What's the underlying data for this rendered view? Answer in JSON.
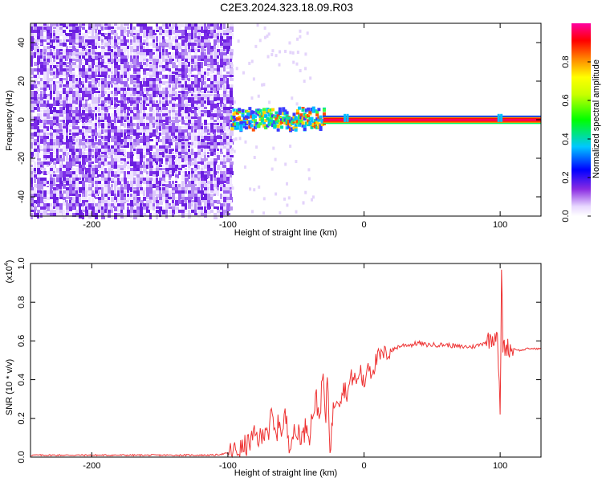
{
  "page": {
    "title": "C2E3.2024.323.18.09.R03"
  },
  "chart_data": [
    {
      "type": "heatmap",
      "title": "C2E3.2024.323.18.09.R03",
      "xlabel": "Height of straight line (km)",
      "ylabel": "Frequency (Hz)",
      "xlim": [
        -245,
        130
      ],
      "ylim": [
        -50,
        50
      ],
      "x_ticks": [
        -200,
        -100,
        0,
        100
      ],
      "y_ticks": [
        -40,
        -20,
        0,
        20,
        40
      ],
      "x_tick_labels": [
        "-200",
        "-100",
        "0",
        "100"
      ],
      "y_tick_labels": [
        "-40",
        "-20",
        "0",
        "20",
        "40"
      ],
      "colorbar": {
        "label": "Normalized spectral amplitude",
        "range": [
          0,
          1
        ],
        "ticks": [
          0.0,
          0.2,
          0.4,
          0.6,
          0.8
        ],
        "tick_labels": [
          "0.0",
          "0.2",
          "0.4",
          "0.6",
          "0.8"
        ],
        "colormap": [
          "#ffffff",
          "#d8c8f8",
          "#8a2be2",
          "#0000ff",
          "#00c8ff",
          "#00ff00",
          "#ffff00",
          "#ff8000",
          "#ff0000",
          "#ff00ff"
        ]
      },
      "regions": [
        {
          "x_range": [
            -245,
            -98
          ],
          "y_range": [
            -50,
            50
          ],
          "amplitude_range": [
            0.0,
            0.25
          ],
          "description_color": "#7b2be8"
        },
        {
          "x_range": [
            -98,
            -30
          ],
          "y_center": 1,
          "half_width_hz": 5,
          "amplitude_range": [
            0.2,
            0.7
          ]
        },
        {
          "x_range": [
            -30,
            130
          ],
          "y_center": 0,
          "half_width_hz": 1.5,
          "amplitude_range": [
            0.7,
            1.0
          ]
        }
      ]
    },
    {
      "type": "line",
      "xlabel": "Height of straight line (km)",
      "ylabel": "SNR (10 * v/v)",
      "y_multiplier_label": "(x10",
      "y_multiplier_exponent": "4",
      "xlim": [
        -245,
        130
      ],
      "ylim": [
        0.0,
        1.0
      ],
      "x_ticks": [
        -200,
        -100,
        0,
        100
      ],
      "y_ticks": [
        0.0,
        0.2,
        0.4,
        0.6,
        0.8,
        1.0
      ],
      "x_tick_labels": [
        "-200",
        "-100",
        "0",
        "100"
      ],
      "y_tick_labels": [
        "0.0",
        "0.2",
        "0.4",
        "0.6",
        "0.8",
        "1.0"
      ],
      "color": "#ee3333",
      "series": [
        {
          "x": [
            -245,
            -200,
            -150,
            -110,
            -100,
            -95,
            -90,
            -85,
            -80,
            -75,
            -72,
            -70,
            -68,
            -65,
            -62,
            -60,
            -58,
            -55,
            -52,
            -50,
            -48,
            -45,
            -42,
            -40,
            -38,
            -35,
            -33,
            -30,
            -28,
            -27,
            -25,
            -22,
            -20,
            -18,
            -15,
            -12,
            -10,
            -8,
            -5,
            -3,
            0,
            3,
            5,
            8,
            10,
            15,
            20,
            25,
            30,
            35,
            40,
            45,
            50,
            60,
            70,
            80,
            85,
            90,
            95,
            98,
            100,
            101,
            102,
            103,
            104,
            105,
            108,
            110,
            115,
            120,
            125,
            130
          ],
          "y": [
            0.01,
            0.01,
            0.01,
            0.01,
            0.02,
            0.03,
            0.04,
            0.07,
            0.11,
            0.09,
            0.18,
            0.12,
            0.22,
            0.1,
            0.2,
            0.12,
            0.22,
            0.08,
            0.12,
            0.1,
            0.14,
            0.1,
            0.18,
            0.12,
            0.22,
            0.3,
            0.2,
            0.42,
            0.15,
            0.45,
            0.05,
            0.28,
            0.32,
            0.3,
            0.36,
            0.33,
            0.4,
            0.42,
            0.38,
            0.46,
            0.36,
            0.5,
            0.44,
            0.48,
            0.51,
            0.53,
            0.55,
            0.57,
            0.58,
            0.58,
            0.59,
            0.58,
            0.58,
            0.58,
            0.57,
            0.57,
            0.58,
            0.6,
            0.62,
            0.65,
            0.2,
            0.95,
            0.58,
            0.57,
            0.56,
            0.57,
            0.56,
            0.56,
            0.55,
            0.56,
            0.56,
            0.56
          ]
        }
      ]
    }
  ]
}
